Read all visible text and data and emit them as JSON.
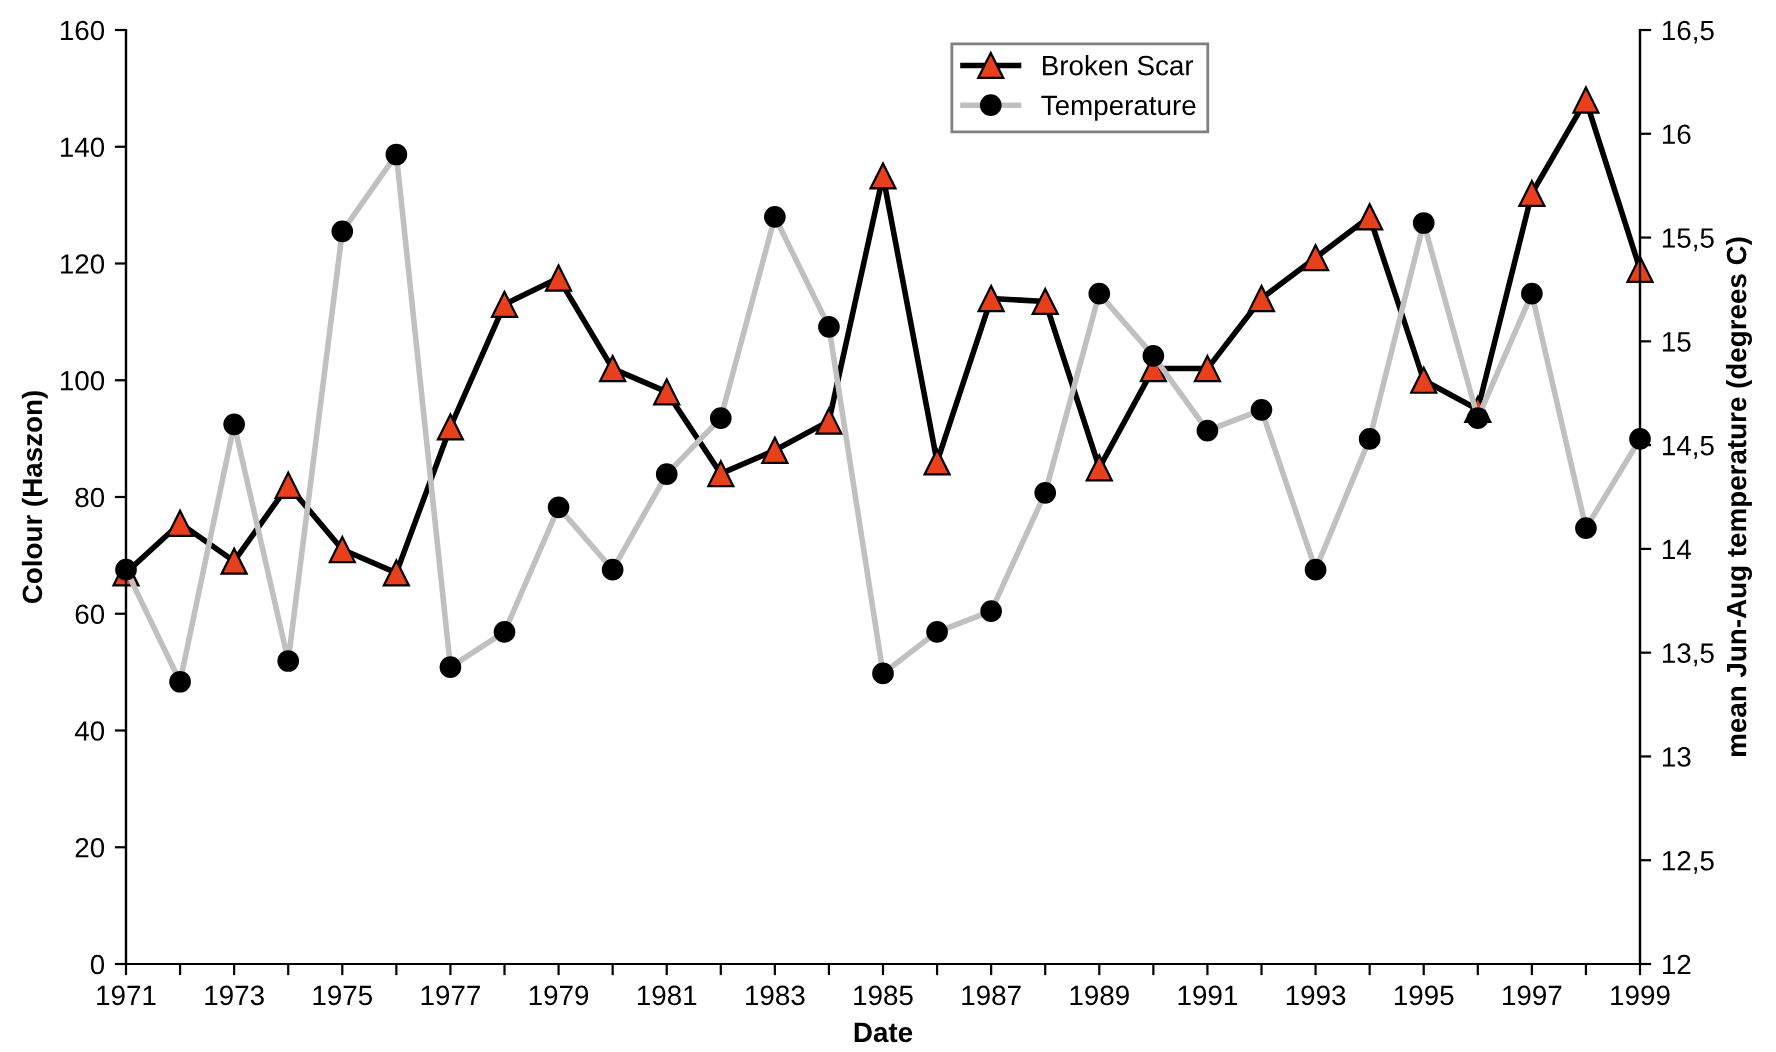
{
  "chart_data": {
    "type": "line",
    "xlabel": "Date",
    "ylabel": "Colour (Haszon)",
    "y2label": "mean Jun-Aug temperature (degrees C)",
    "x": [
      1971,
      1972,
      1973,
      1974,
      1975,
      1976,
      1977,
      1978,
      1979,
      1980,
      1981,
      1982,
      1983,
      1984,
      1985,
      1986,
      1987,
      1988,
      1989,
      1990,
      1991,
      1992,
      1993,
      1994,
      1995,
      1996,
      1997,
      1998,
      1999
    ],
    "series": [
      {
        "name": "Broken Scar",
        "color": "#e8401c",
        "marker": "triangle",
        "values": [
          67,
          75.5,
          69,
          82,
          71,
          67,
          92,
          113,
          117.5,
          102,
          98,
          84,
          88,
          93,
          135,
          86,
          114,
          113.5,
          85,
          102,
          102,
          114,
          121,
          128,
          100,
          95,
          132,
          148,
          119
        ]
      },
      {
        "name": "Temperature",
        "color": "#000000",
        "marker": "circle",
        "axis": "y2",
        "values": [
          13.9,
          13.36,
          14.6,
          13.46,
          15.53,
          15.9,
          13.43,
          13.6,
          14.2,
          13.9,
          14.36,
          14.63,
          15.6,
          15.07,
          13.4,
          13.6,
          13.7,
          14.27,
          15.23,
          14.93,
          14.57,
          14.67,
          13.9,
          14.53,
          15.57,
          14.63,
          15.23,
          14.1,
          14.53
        ]
      }
    ],
    "xlim": [
      1971,
      1999
    ],
    "xticks": [
      1971,
      {
        "value": 1972,
        "label": null
      },
      1973,
      {
        "value": 1974,
        "label": null
      },
      1975,
      {
        "value": 1976,
        "label": null
      },
      1977,
      {
        "value": 1978,
        "label": null
      },
      1979,
      {
        "value": 1980,
        "label": null
      },
      1981,
      {
        "value": 1982,
        "label": null
      },
      1983,
      {
        "value": 1984,
        "label": null
      },
      1985,
      {
        "value": 1986,
        "label": null
      },
      1987,
      {
        "value": 1988,
        "label": null
      },
      1989,
      {
        "value": 1990,
        "label": null
      },
      1991,
      {
        "value": 1992,
        "label": null
      },
      1993,
      {
        "value": 1994,
        "label": null
      },
      1995,
      {
        "value": 1996,
        "label": null
      },
      1997,
      {
        "value": 1998,
        "label": null
      },
      1999
    ],
    "ylim": [
      0,
      160
    ],
    "yticks": [
      0,
      20,
      40,
      60,
      80,
      100,
      120,
      140,
      160
    ],
    "y2lim": [
      12,
      16.5
    ],
    "y2ticks": [
      12,
      {
        "value": 12.5,
        "label": "12,5"
      },
      13,
      {
        "value": 13.5,
        "label": "13,5"
      },
      14,
      {
        "value": 14.5,
        "label": "14,5"
      },
      15,
      {
        "value": 15.5,
        "label": "15,5"
      },
      16,
      {
        "value": 16.5,
        "label": "16,5"
      }
    ],
    "grid": false,
    "legend": "top",
    "line_style": "solid"
  }
}
